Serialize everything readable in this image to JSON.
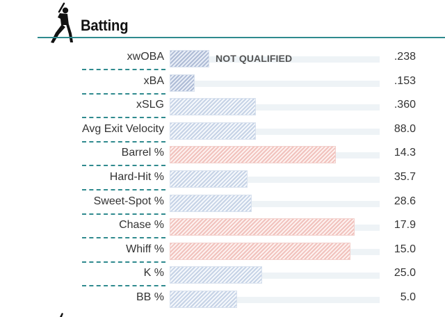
{
  "section": {
    "title": "Batting",
    "icon": "baseball-batter-icon",
    "accent_color": "#2f8a8e"
  },
  "rows": [
    {
      "label": "xwOBA",
      "value": ".238",
      "bar_pct": 0.19,
      "color": "blue-dark",
      "note": "NOT QUALIFIED"
    },
    {
      "label": "xBA",
      "value": ".153",
      "bar_pct": 0.12,
      "color": "blue-dark",
      "note": ""
    },
    {
      "label": "xSLG",
      "value": ".360",
      "bar_pct": 0.41,
      "color": "blue",
      "note": ""
    },
    {
      "label": "Avg Exit Velocity",
      "value": "88.0",
      "bar_pct": 0.41,
      "color": "blue",
      "note": ""
    },
    {
      "label": "Barrel %",
      "value": "14.3",
      "bar_pct": 0.79,
      "color": "red",
      "note": ""
    },
    {
      "label": "Hard-Hit %",
      "value": "35.7",
      "bar_pct": 0.37,
      "color": "blue",
      "note": ""
    },
    {
      "label": "Sweet-Spot %",
      "value": "28.6",
      "bar_pct": 0.39,
      "color": "blue",
      "note": ""
    },
    {
      "label": "Chase %",
      "value": "17.9",
      "bar_pct": 0.88,
      "color": "red",
      "note": ""
    },
    {
      "label": "Whiff %",
      "value": "15.0",
      "bar_pct": 0.86,
      "color": "red",
      "note": ""
    },
    {
      "label": "K %",
      "value": "25.0",
      "bar_pct": 0.44,
      "color": "blue",
      "note": ""
    },
    {
      "label": "BB %",
      "value": "5.0",
      "bar_pct": 0.32,
      "color": "blue",
      "note": ""
    }
  ]
}
